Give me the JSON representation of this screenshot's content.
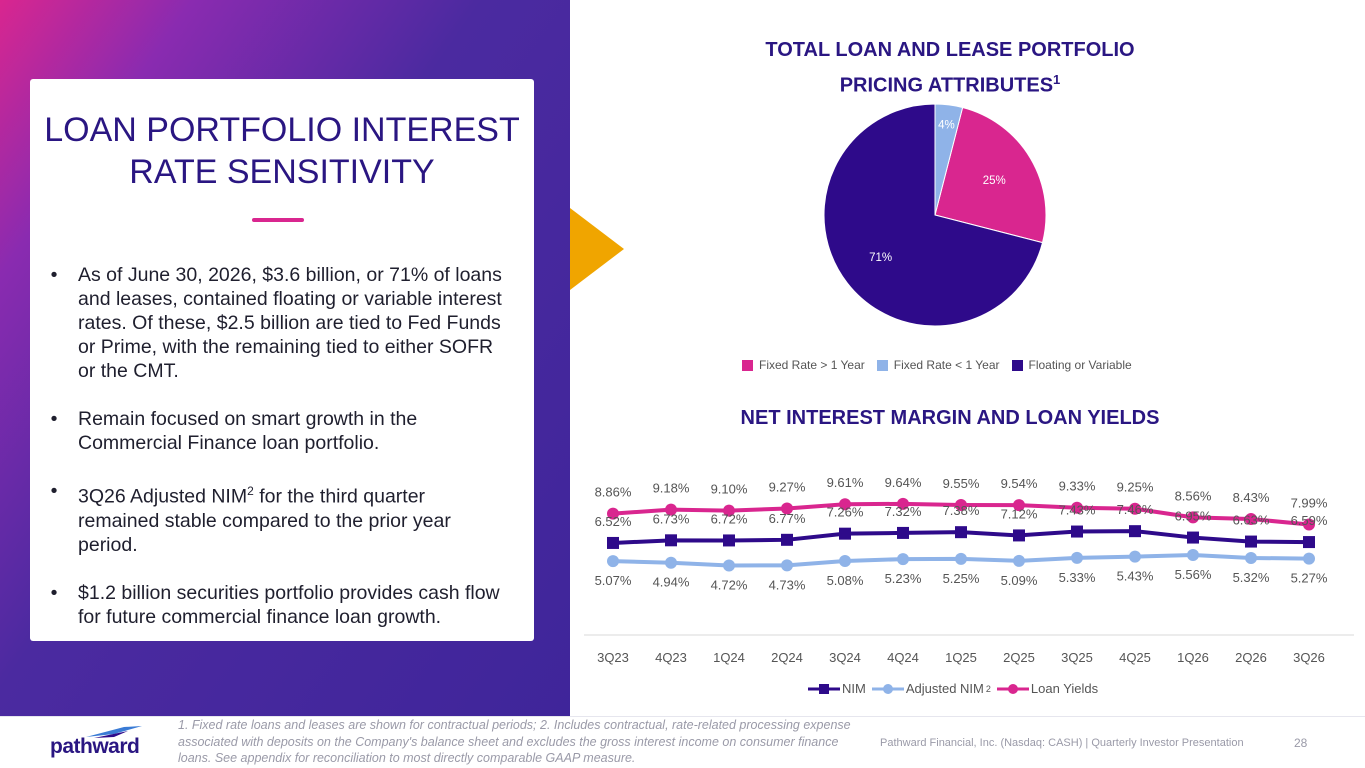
{
  "card": {
    "title_line1": "LOAN PORTFOLIO INTEREST",
    "title_line2": "RATE SENSITIVITY",
    "bullets": [
      {
        "text": "As of June 30, 2026, $3.6 billion, or 71% of loans and leases, contained floating or variable interest rates. Of these, $2.5 billion are tied to Fed Funds or Prime, with the remaining tied to either SOFR or the CMT."
      },
      {
        "text": "Remain focused on smart growth in the Commercial Finance loan portfolio."
      },
      {
        "pre": "3Q26 Adjusted NIM",
        "sup": "2",
        "post": " for the third quarter remained stable compared to the prior year period."
      },
      {
        "text": "$1.2 billion securities portfolio provides cash flow for future commercial finance loan growth."
      }
    ]
  },
  "pie": {
    "title_line1": "TOTAL LOAN AND LEASE PORTFOLIO",
    "title_line2": "PRICING ATTRIBUTES",
    "title_sup": "1"
  },
  "line": {
    "title": "NET INTEREST MARGIN AND LOAN YIELDS",
    "legend_nim": "NIM",
    "legend_adj": "Adjusted NIM",
    "legend_adj_sup": "2",
    "legend_loan": "Loan Yields"
  },
  "chart_data": [
    {
      "type": "pie",
      "title": "TOTAL LOAN AND LEASE PORTFOLIO PRICING ATTRIBUTES1",
      "slices": [
        {
          "name": "Fixed Rate > 1 Year",
          "value": 25,
          "label": "25%",
          "color": "#d9268f"
        },
        {
          "name": "Floating or Variable",
          "value": 71,
          "label": "71%",
          "color": "#2e0a8a"
        },
        {
          "name": "Fixed Rate < 1 Year",
          "value": 4,
          "label": "4%",
          "color": "#8fb3e8"
        }
      ],
      "legend": [
        "Fixed Rate > 1 Year",
        "Fixed Rate < 1 Year",
        "Floating or Variable"
      ],
      "legend_position": "bottom"
    },
    {
      "type": "line",
      "title": "NET INTEREST MARGIN AND LOAN YIELDS",
      "categories": [
        "3Q23",
        "4Q23",
        "1Q24",
        "2Q24",
        "3Q24",
        "4Q24",
        "1Q25",
        "2Q25",
        "3Q25",
        "4Q25",
        "1Q26",
        "2Q26",
        "3Q26"
      ],
      "series": [
        {
          "name": "Loan Yields",
          "color": "#d9268f",
          "values": [
            8.86,
            9.18,
            9.1,
            9.27,
            9.61,
            9.64,
            9.55,
            9.54,
            9.33,
            9.25,
            8.56,
            8.43,
            7.99
          ],
          "labels": [
            "8.86%",
            "9.18%",
            "9.10%",
            "9.27%",
            "9.61%",
            "9.64%",
            "9.55%",
            "9.54%",
            "9.33%",
            "9.25%",
            "8.56%",
            "8.43%",
            "7.99%"
          ]
        },
        {
          "name": "NIM",
          "color": "#2e0a8a",
          "values": [
            6.52,
            6.73,
            6.72,
            6.77,
            7.26,
            7.32,
            7.38,
            7.12,
            7.43,
            7.46,
            6.95,
            6.63,
            6.59
          ],
          "labels": [
            "6.52%",
            "6.73%",
            "6.72%",
            "6.77%",
            "7.26%",
            "7.32%",
            "7.38%",
            "7.12%",
            "7.43%",
            "7.46%",
            "6.95%",
            "6.63%",
            "6.59%"
          ]
        },
        {
          "name": "Adjusted NIM2",
          "color": "#8fb3e8",
          "values": [
            5.07,
            4.94,
            4.72,
            4.73,
            5.08,
            5.23,
            5.25,
            5.09,
            5.33,
            5.43,
            5.56,
            5.32,
            5.27
          ],
          "labels": [
            "5.07%",
            "4.94%",
            "4.72%",
            "4.73%",
            "5.08%",
            "5.23%",
            "5.25%",
            "5.09%",
            "5.33%",
            "5.43%",
            "5.56%",
            "5.32%",
            "5.27%"
          ]
        }
      ],
      "legend": [
        "NIM",
        "Adjusted NIM2",
        "Loan Yields"
      ],
      "legend_position": "bottom",
      "grid": false
    }
  ],
  "footer": {
    "logo": "pathward",
    "footnote": "1. Fixed rate loans and leases are shown for contractual periods; 2. Includes contractual, rate-related processing expense associated with deposits on the Company's balance sheet and excludes the gross interest income on consumer finance loans. See appendix for reconciliation to most directly comparable GAAP measure.",
    "company": "Pathward Financial, Inc. (Nasdaq: CASH) | Quarterly Investor Presentation",
    "page": "28"
  }
}
